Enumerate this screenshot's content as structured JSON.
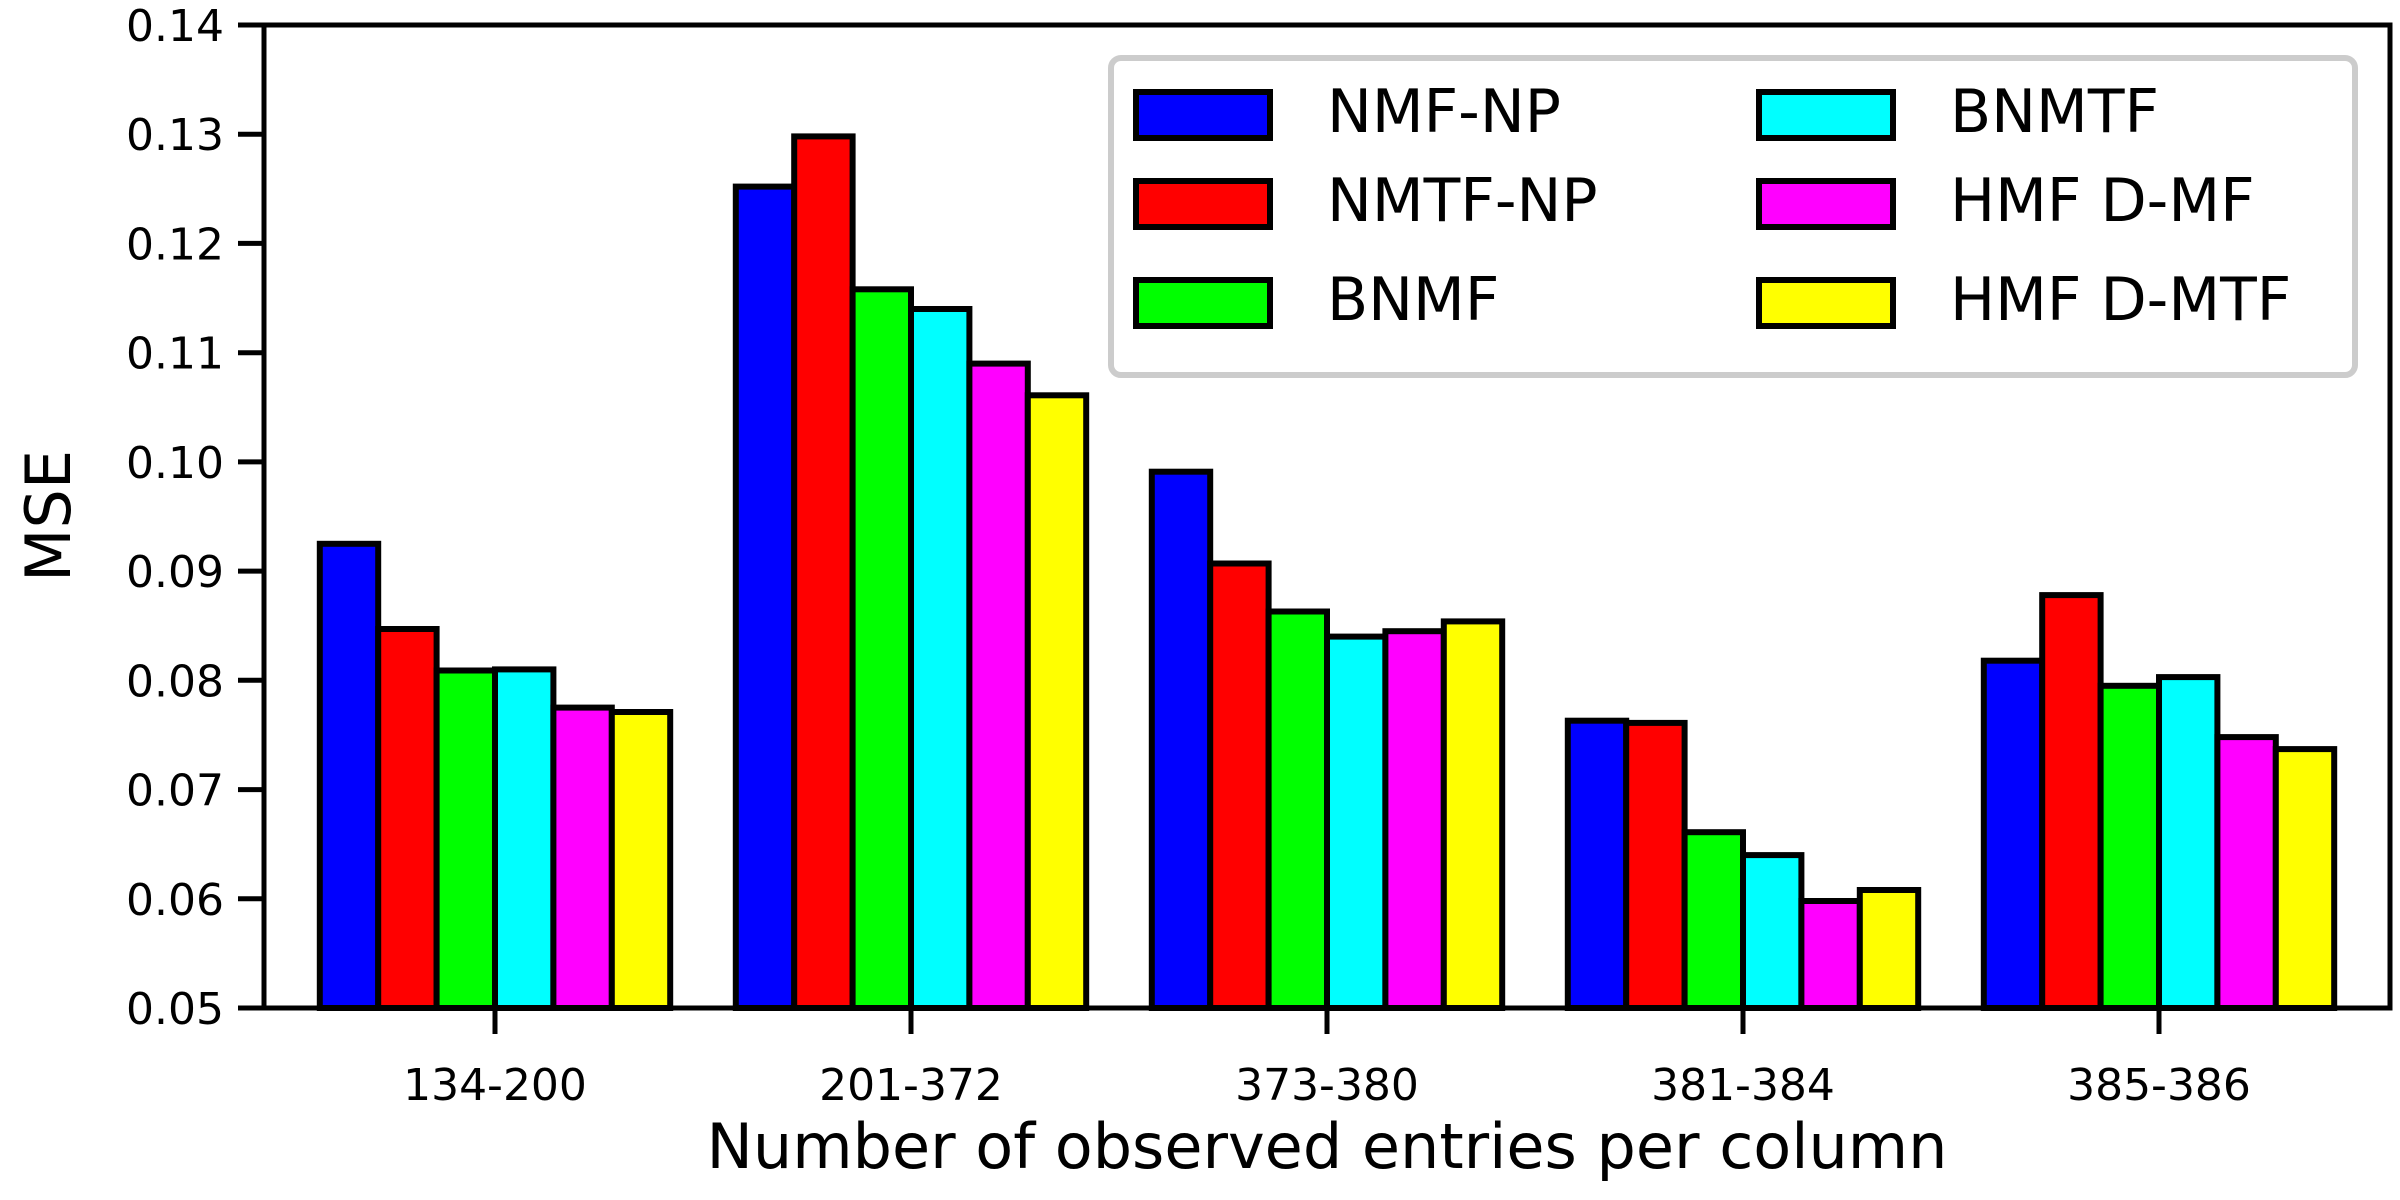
{
  "chart_data": {
    "type": "bar",
    "title": "",
    "xlabel": "Number of observed entries per column",
    "ylabel": "MSE",
    "ylim": [
      0.05,
      0.14
    ],
    "yticks": [
      "0.05",
      "0.06",
      "0.07",
      "0.08",
      "0.09",
      "0.10",
      "0.11",
      "0.12",
      "0.13",
      "0.14"
    ],
    "categories": [
      "134-200",
      "201-372",
      "373-380",
      "381-384",
      "385-386"
    ],
    "grid": false,
    "legend_position": "top-right",
    "series": [
      {
        "name": "NMF-NP",
        "color": "#0000ff",
        "values": [
          0.0925,
          0.1252,
          0.0991,
          0.0763,
          0.0818
        ]
      },
      {
        "name": "NMTF-NP",
        "color": "#ff0000",
        "values": [
          0.0847,
          0.1298,
          0.0907,
          0.0761,
          0.0878
        ]
      },
      {
        "name": "BNMF",
        "color": "#00ff00",
        "values": [
          0.0809,
          0.1158,
          0.0863,
          0.0661,
          0.0795
        ]
      },
      {
        "name": "BNMTF",
        "color": "#00ffff",
        "values": [
          0.081,
          0.114,
          0.084,
          0.064,
          0.0803
        ]
      },
      {
        "name": "HMF D-MF",
        "color": "#ff00ff",
        "values": [
          0.0775,
          0.109,
          0.0845,
          0.0598,
          0.0748
        ]
      },
      {
        "name": "HMF D-MTF",
        "color": "#ffff00",
        "values": [
          0.0771,
          0.1061,
          0.0854,
          0.0608,
          0.0737
        ]
      }
    ]
  }
}
